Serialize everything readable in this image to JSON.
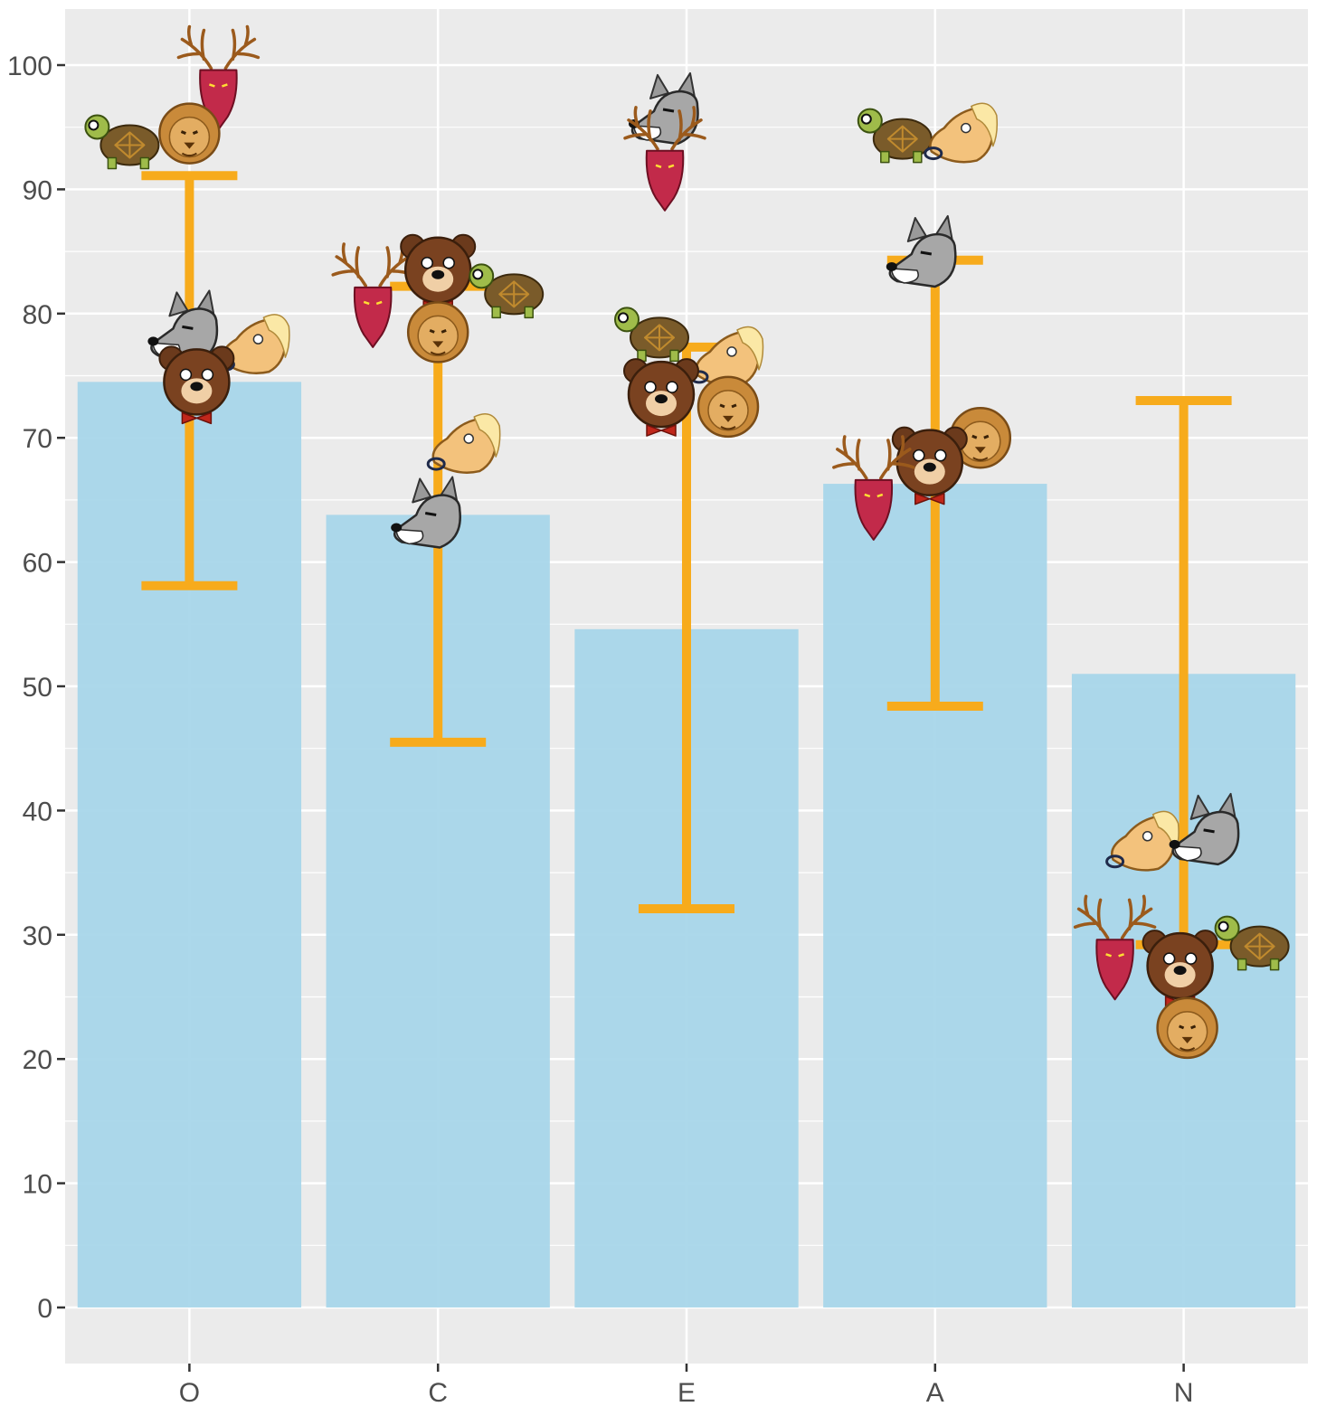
{
  "chart_data": {
    "type": "bar",
    "title": "",
    "xlabel": "",
    "ylabel": "",
    "categories": [
      "O",
      "C",
      "E",
      "A",
      "N"
    ],
    "values": [
      74.5,
      63.8,
      54.6,
      66.3,
      51.0
    ],
    "error_bars": [
      {
        "low": 58.1,
        "high": 91.1
      },
      {
        "low": 45.5,
        "high": 82.2
      },
      {
        "low": 32.1,
        "high": 77.3
      },
      {
        "low": 48.4,
        "high": 84.3
      },
      {
        "low": 29.2,
        "high": 73.0
      }
    ],
    "ylim": [
      -4.5,
      104.5
    ],
    "yticks": [
      0,
      10,
      20,
      30,
      40,
      50,
      60,
      70,
      80,
      90,
      100
    ],
    "grid": true,
    "legend": "none",
    "bar_color": "#a8d6ea",
    "errorbar_color": "#f7ab1c",
    "panel_color": "#ebebeb",
    "individual_points": [
      {
        "category": "O",
        "animal": "deer",
        "value": 98.0
      },
      {
        "category": "O",
        "animal": "turtle",
        "value": 94.0
      },
      {
        "category": "O",
        "animal": "lion",
        "value": 94.5
      },
      {
        "category": "O",
        "animal": "wolf",
        "value": 78.5
      },
      {
        "category": "O",
        "animal": "horse",
        "value": 77.5
      },
      {
        "category": "O",
        "animal": "bear",
        "value": 74.5
      },
      {
        "category": "C",
        "animal": "deer",
        "value": 80.5
      },
      {
        "category": "C",
        "animal": "bear",
        "value": 83.5
      },
      {
        "category": "C",
        "animal": "turtle",
        "value": 82.0
      },
      {
        "category": "C",
        "animal": "lion",
        "value": 78.5
      },
      {
        "category": "C",
        "animal": "horse",
        "value": 69.5
      },
      {
        "category": "C",
        "animal": "wolf",
        "value": 63.5
      },
      {
        "category": "E",
        "animal": "wolf",
        "value": 96.0
      },
      {
        "category": "E",
        "animal": "deer",
        "value": 91.5
      },
      {
        "category": "E",
        "animal": "turtle",
        "value": 78.5
      },
      {
        "category": "E",
        "animal": "horse",
        "value": 76.5
      },
      {
        "category": "E",
        "animal": "bear",
        "value": 73.5
      },
      {
        "category": "E",
        "animal": "lion",
        "value": 72.5
      },
      {
        "category": "A",
        "animal": "turtle",
        "value": 94.5
      },
      {
        "category": "A",
        "animal": "horse",
        "value": 94.5
      },
      {
        "category": "A",
        "animal": "wolf",
        "value": 84.5
      },
      {
        "category": "A",
        "animal": "lion",
        "value": 70.0
      },
      {
        "category": "A",
        "animal": "bear",
        "value": 68.0
      },
      {
        "category": "A",
        "animal": "deer",
        "value": 65.0
      },
      {
        "category": "N",
        "animal": "horse",
        "value": 37.5
      },
      {
        "category": "N",
        "animal": "wolf",
        "value": 38.0
      },
      {
        "category": "N",
        "animal": "deer",
        "value": 28.0
      },
      {
        "category": "N",
        "animal": "bear",
        "value": 27.5
      },
      {
        "category": "N",
        "animal": "turtle",
        "value": 29.5
      },
      {
        "category": "N",
        "animal": "lion",
        "value": 22.5
      }
    ]
  }
}
